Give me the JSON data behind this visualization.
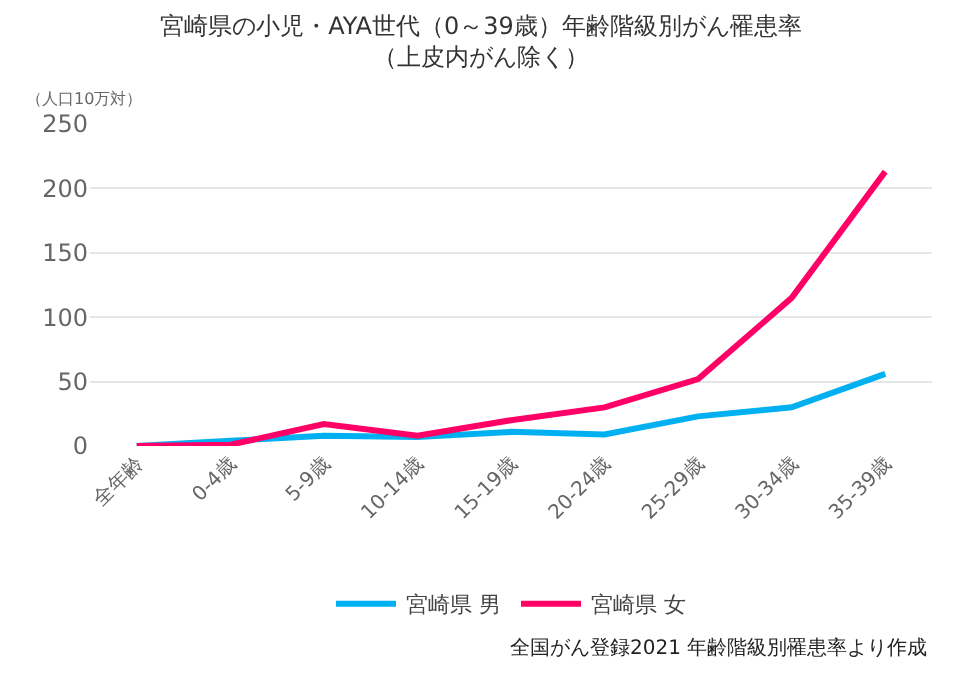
{
  "chart_data": {
    "type": "line",
    "title": "宮崎県の小児・AYA世代（0～39歳）年齢階級別がん罹患率",
    "subtitle": "（上皮内がん除く）",
    "ylabel": "（人口10万対）",
    "categories": [
      "全年齢",
      "0-4歳",
      "5-9歳",
      "10-14歳",
      "15-19歳",
      "20-24歳",
      "25-29歳",
      "30-34歳",
      "35-39歳"
    ],
    "series": [
      {
        "name": "宮崎県 男",
        "color": "#00b0f0",
        "values": [
          0,
          4,
          8,
          7,
          11,
          9,
          23,
          30,
          56
        ]
      },
      {
        "name": "宮崎県 女",
        "color": "#ff0066",
        "values": [
          0,
          1,
          17,
          8,
          20,
          30,
          52,
          115,
          213
        ]
      }
    ],
    "ylim": [
      0,
      250
    ],
    "yticks": [
      0,
      50,
      100,
      150,
      200,
      250
    ],
    "grid": "y",
    "legend": "bottom",
    "marker": "none",
    "line_style": "solid",
    "annotations": [
      "全国がん登録2021 年齢階級別罹患率より作成"
    ]
  }
}
